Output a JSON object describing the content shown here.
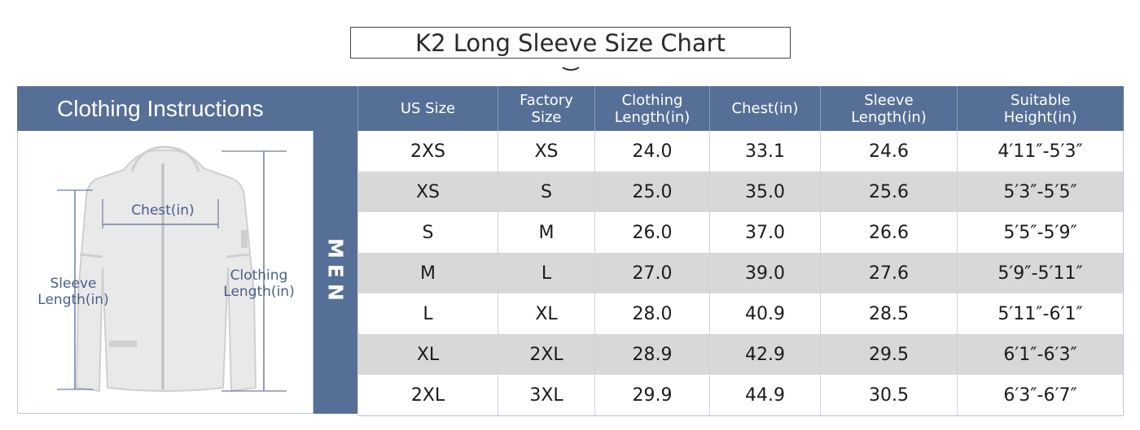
{
  "title": "K2 Long Sleeve Size Chart",
  "instructions": {
    "heading": "Clothing Instructions",
    "chest_label": "Chest(in)",
    "sleeve_label_1": "Sleeve",
    "sleeve_label_2": "Length(in)",
    "clothing_label_1": "Clothing",
    "clothing_label_2": "Length(in)"
  },
  "section_label": "MEN",
  "table": {
    "headers": [
      [
        "US Size"
      ],
      [
        "Factory",
        "Size"
      ],
      [
        "Clothing",
        "Length(in)"
      ],
      [
        "Chest(in)"
      ],
      [
        "Sleeve",
        "Length(in)"
      ],
      [
        "Suitable",
        "Height(in)"
      ]
    ],
    "rows": [
      [
        "2XS",
        "XS",
        "24.0",
        "33.1",
        "24.6",
        "4′11″-5′3″"
      ],
      [
        "XS",
        "S",
        "25.0",
        "35.0",
        "25.6",
        "5′3″-5′5″"
      ],
      [
        "S",
        "M",
        "26.0",
        "37.0",
        "26.6",
        "5′5″-5′9″"
      ],
      [
        "M",
        "L",
        "27.0",
        "39.0",
        "27.6",
        "5′9″-5′11″"
      ],
      [
        "L",
        "XL",
        "28.0",
        "40.9",
        "28.5",
        "5′11″-6′1″"
      ],
      [
        "XL",
        "2XL",
        "28.9",
        "42.9",
        "29.5",
        "6′1″-6′3″"
      ],
      [
        "2XL",
        "3XL",
        "29.9",
        "44.9",
        "30.5",
        "6′3″-6′7″"
      ]
    ]
  }
}
